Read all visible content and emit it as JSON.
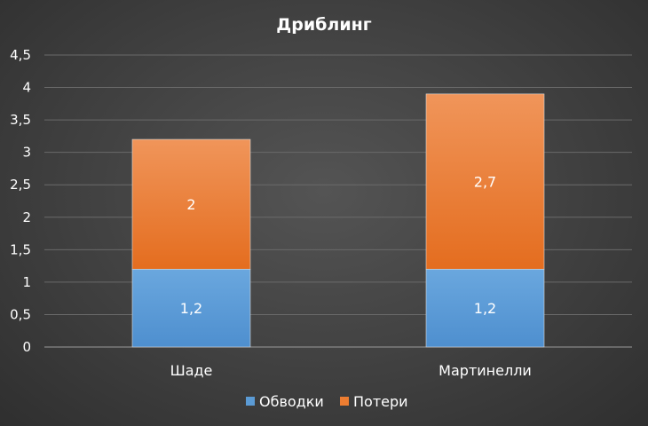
{
  "chart_data": {
    "type": "bar",
    "stacked": true,
    "title": "Дриблинг",
    "categories": [
      "Шаде",
      "Мартинелли"
    ],
    "series": [
      {
        "name": "Обводки",
        "values": [
          1.2,
          1.2
        ],
        "labels": [
          "1,2",
          "1,2"
        ],
        "color": "#5b9bd5"
      },
      {
        "name": "Потери",
        "values": [
          2,
          2.7
        ],
        "labels": [
          "2",
          "2,7"
        ],
        "color": "#ed7d31"
      }
    ],
    "ylim": [
      0,
      4.5
    ],
    "yticks": [
      0,
      0.5,
      1,
      1.5,
      2,
      2.5,
      3,
      3.5,
      4,
      4.5
    ],
    "ytick_labels": [
      "0",
      "0,5",
      "1",
      "1,5",
      "2",
      "2,5",
      "3",
      "3,5",
      "4",
      "4,5"
    ],
    "grid": true,
    "legend_position": "bottom",
    "xlabel": "",
    "ylabel": ""
  }
}
